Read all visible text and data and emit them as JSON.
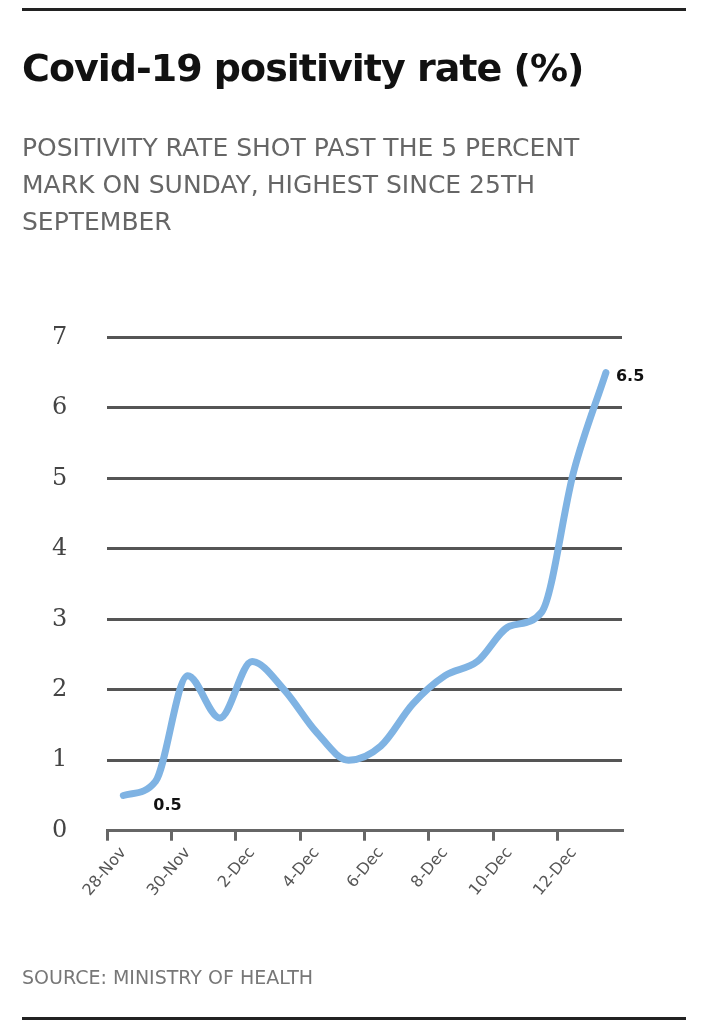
{
  "chart_data": {
    "type": "line",
    "title": "Covid-19 positivity rate (%)",
    "subtitle": "POSITIVITY RATE SHOT PAST THE 5 PERCENT MARK ON SUNDAY, HIGHEST SINCE 25TH SEPTEMBER",
    "categories": [
      "28-Nov",
      null,
      "30-Nov",
      null,
      "2-Dec",
      null,
      "4-Dec",
      null,
      "6-Dec",
      null,
      "8-Dec",
      null,
      "10-Dec",
      null,
      "12-Dec",
      null
    ],
    "series": [
      {
        "color": "#7fb3e3",
        "values": [
          0.5,
          0.7,
          2.2,
          1.6,
          2.4,
          2.0,
          1.4,
          1.0,
          1.2,
          1.8,
          2.2,
          2.4,
          2.9,
          3.1,
          5.1,
          6.5
        ],
        "value_labels": [
          "0.5",
          null,
          null,
          null,
          null,
          null,
          null,
          null,
          null,
          null,
          null,
          null,
          null,
          null,
          null,
          "6.5"
        ]
      }
    ],
    "ylim": [
      0,
      7
    ],
    "yticks": [
      0,
      1,
      2,
      3,
      4,
      5,
      6,
      7
    ],
    "grid": "y",
    "legend": false,
    "marker": "none",
    "line_style": "solid",
    "annotations": [
      "SOURCE: MINISTRY OF HEALTH"
    ]
  }
}
